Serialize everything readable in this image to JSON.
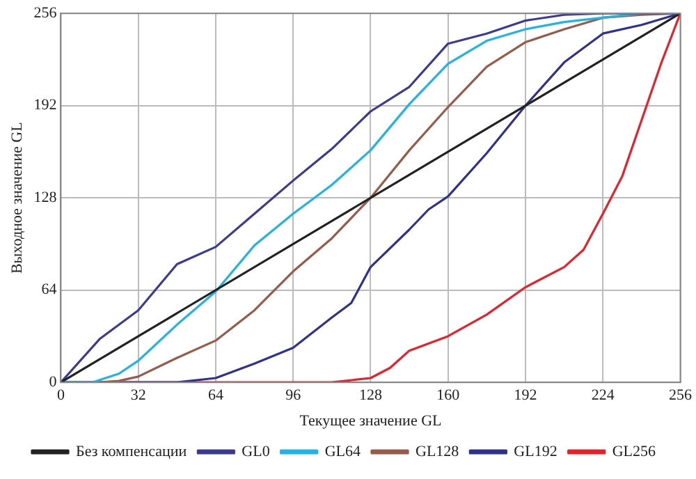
{
  "chart_data": {
    "type": "line",
    "xlabel": "Текущее значение GL",
    "ylabel": "Выходное значение GL",
    "xlim": [
      0,
      256
    ],
    "ylim": [
      0,
      256
    ],
    "xticks": [
      0,
      32,
      64,
      96,
      128,
      160,
      192,
      224,
      256
    ],
    "yticks": [
      0,
      64,
      128,
      192,
      256
    ],
    "grid": true,
    "legend": "bottom",
    "marker": "none",
    "line_style": "solid",
    "series": [
      {
        "name": "Без компенсации",
        "color": "#222222",
        "x": [
          0,
          256
        ],
        "values": [
          0,
          256
        ]
      },
      {
        "name": "GL0",
        "color": "#3b3b96",
        "x": [
          0,
          16,
          32,
          48,
          64,
          80,
          96,
          112,
          128,
          144,
          160,
          176,
          192,
          208,
          224,
          256
        ],
        "values": [
          0,
          30,
          50,
          82,
          94,
          117,
          140,
          162,
          188,
          205,
          235,
          242,
          251,
          255,
          256,
          256
        ]
      },
      {
        "name": "GL64",
        "color": "#1eb4e8",
        "x": [
          0,
          13,
          24,
          32,
          48,
          64,
          80,
          96,
          112,
          128,
          144,
          160,
          176,
          192,
          208,
          224,
          240,
          256
        ],
        "values": [
          0,
          0,
          6,
          15,
          40,
          63,
          95,
          117,
          137,
          161,
          193,
          221,
          237,
          245,
          250,
          253,
          256,
          256
        ]
      },
      {
        "name": "GL128",
        "color": "#9a5a48",
        "x": [
          0,
          16,
          24,
          32,
          48,
          64,
          80,
          96,
          112,
          128,
          144,
          160,
          176,
          192,
          208,
          224,
          240,
          256
        ],
        "values": [
          0,
          0,
          1,
          4,
          17,
          29,
          50,
          77,
          100,
          128,
          161,
          191,
          219,
          236,
          245,
          253,
          255,
          256
        ]
      },
      {
        "name": "GL192",
        "color": "#2e3192",
        "x": [
          0,
          48,
          64,
          80,
          96,
          112,
          120,
          128,
          144,
          152,
          160,
          176,
          192,
          208,
          224,
          240,
          256
        ],
        "values": [
          0,
          0,
          3,
          13,
          24,
          45,
          55,
          80,
          106,
          120,
          129,
          159,
          192,
          222,
          242,
          248,
          256
        ]
      },
      {
        "name": "GL256",
        "color": "#e8202a",
        "x": [
          0,
          112,
          128,
          136,
          144,
          160,
          176,
          192,
          208,
          216,
          224,
          232,
          240,
          248,
          256
        ],
        "values": [
          0,
          0,
          3,
          10,
          22,
          32,
          47,
          66,
          80,
          92,
          117,
          143,
          182,
          221,
          256
        ]
      }
    ]
  }
}
